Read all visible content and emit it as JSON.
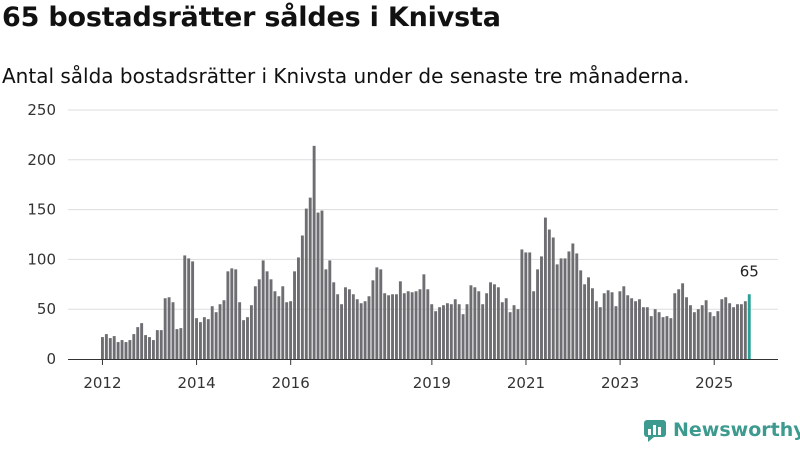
{
  "title": "65 bostadsrätter såldes i Knivsta",
  "subtitle": "Antal sålda bostadsrätter i Knivsta under de senaste tre månaderna.",
  "brand": "Newsworthy",
  "colors": {
    "bar": "#6e6e72",
    "highlight": "#2aa197",
    "grid": "#dddddd",
    "axis": "#333333",
    "brand": "#3d9a8f"
  },
  "chart_data": {
    "type": "bar",
    "title": "65 bostadsrätter såldes i Knivsta",
    "subtitle": "Antal sålda bostadsrätter i Knivsta under de senaste tre månaderna.",
    "xlabel": "",
    "ylabel": "",
    "ylim": [
      0,
      250
    ],
    "yticks": [
      0,
      50,
      100,
      150,
      200,
      250
    ],
    "xtick_labels": [
      "2012",
      "2014",
      "2016",
      "2019",
      "2021",
      "2023",
      "2025"
    ],
    "xtick_positions": [
      2012.0,
      2014.0,
      2016.0,
      2019.0,
      2021.0,
      2023.0,
      2025.0
    ],
    "x_start": 2012.0,
    "x_step": 0.0833,
    "grid": true,
    "highlight_last": true,
    "last_label": "65",
    "values": [
      22,
      25,
      21,
      23,
      17,
      19,
      17,
      19,
      25,
      32,
      36,
      24,
      22,
      19,
      29,
      29,
      61,
      62,
      57,
      30,
      31,
      104,
      101,
      98,
      41,
      37,
      42,
      40,
      53,
      47,
      55,
      59,
      88,
      91,
      90,
      57,
      39,
      42,
      54,
      73,
      80,
      99,
      88,
      80,
      68,
      63,
      73,
      57,
      58,
      88,
      102,
      124,
      151,
      162,
      214,
      147,
      149,
      90,
      99,
      77,
      65,
      55,
      72,
      70,
      65,
      60,
      56,
      58,
      63,
      79,
      92,
      90,
      66,
      64,
      65,
      65,
      78,
      66,
      68,
      67,
      68,
      70,
      85,
      70,
      55,
      48,
      52,
      54,
      56,
      55,
      60,
      55,
      45,
      55,
      74,
      72,
      68,
      55,
      66,
      77,
      75,
      72,
      57,
      61,
      47,
      54,
      50,
      110,
      107,
      107,
      68,
      90,
      103,
      142,
      130,
      122,
      95,
      101,
      101,
      108,
      116,
      106,
      89,
      75,
      82,
      71,
      58,
      52,
      66,
      69,
      67,
      53,
      68,
      73,
      64,
      61,
      58,
      60,
      52,
      52,
      43,
      50,
      47,
      42,
      43,
      41,
      66,
      70,
      76,
      62,
      54,
      47,
      50,
      54,
      59,
      47,
      43,
      48,
      60,
      62,
      56,
      52,
      55,
      55,
      58,
      65
    ]
  }
}
